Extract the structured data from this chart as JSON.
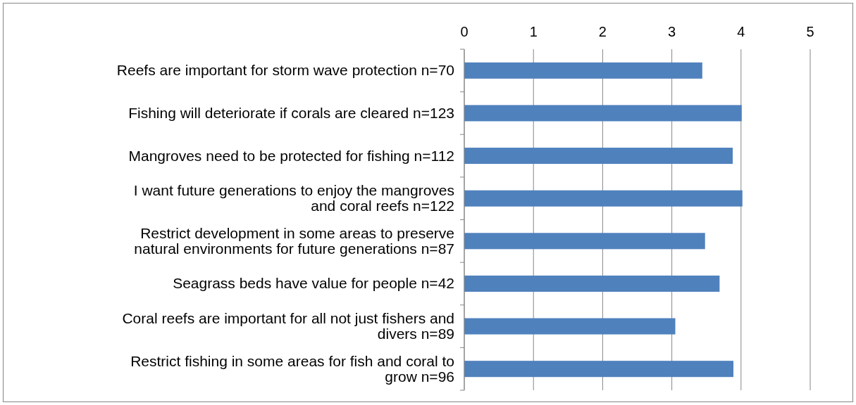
{
  "chart_data": {
    "type": "bar",
    "orientation": "horizontal",
    "categories": [
      "Reefs are important for storm wave protection n=70",
      "Fishing will deteriorate if corals are cleared n=123",
      "Mangroves need to be protected for fishing n=112",
      "I want future generations to enjoy the mangroves and coral reefs n=122",
      "Restrict development in some areas to preserve natural environments for future generations n=87",
      "Seagrass beds have value for people n=42",
      "Coral reefs are important for all not just fishers and divers n=89",
      "Restrict fishing in some areas for fish and coral to grow n=96"
    ],
    "values": [
      3.44,
      4.01,
      3.88,
      4.02,
      3.48,
      3.69,
      3.05,
      3.89
    ],
    "color": "#4f81bd",
    "xlim": [
      0,
      5
    ],
    "xticks": [
      0,
      1,
      2,
      3,
      4,
      5
    ],
    "grid": "x"
  }
}
